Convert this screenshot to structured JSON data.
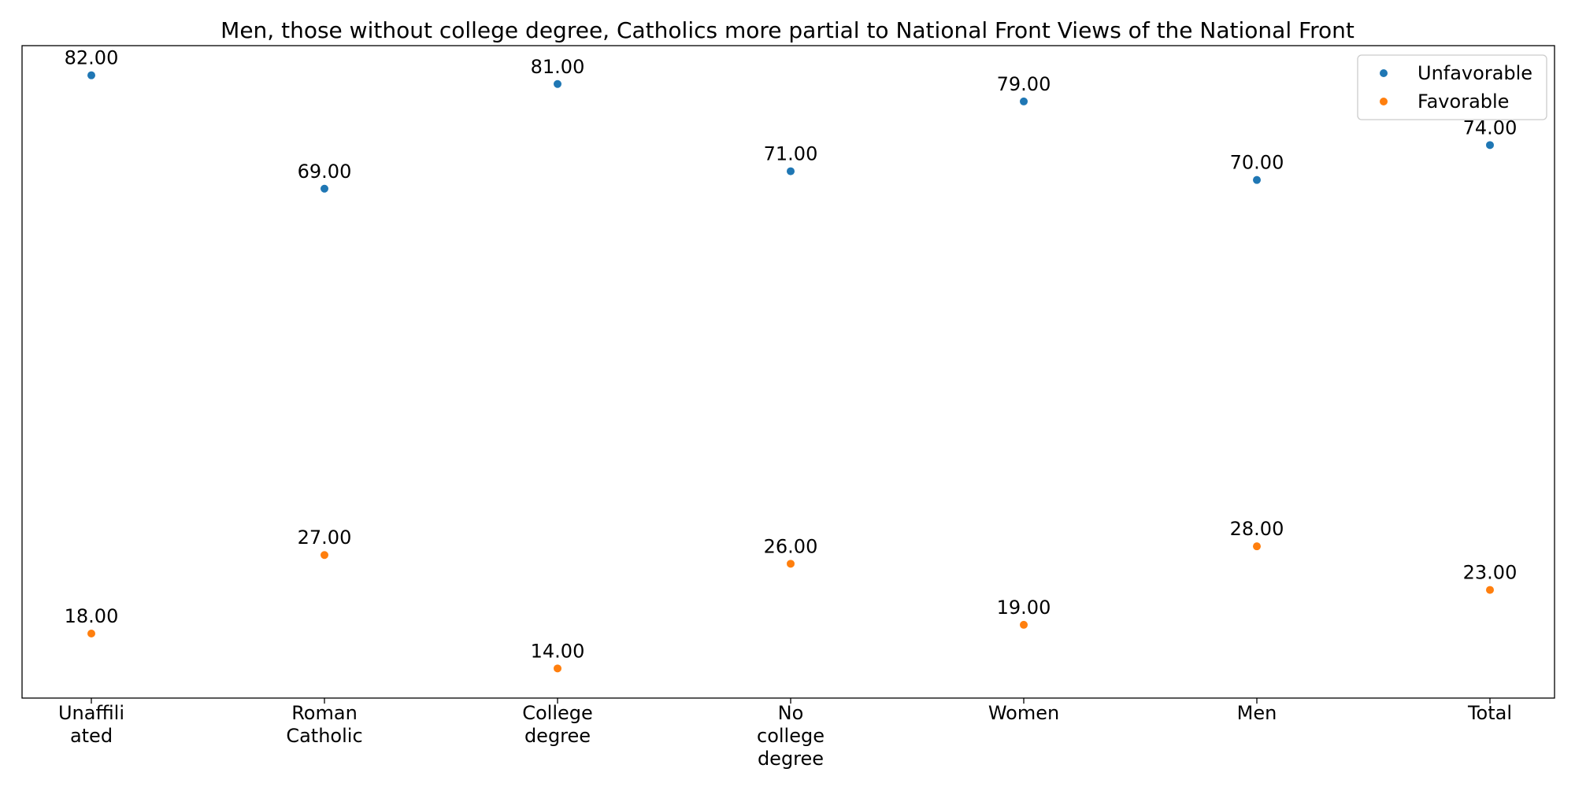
{
  "chart_data": {
    "type": "scatter",
    "title": "Men, those without college degree, Catholics more partial to National Front Views of the National Front",
    "xlabel": "",
    "ylabel": "",
    "categories": [
      [
        "Unaffili",
        "ated"
      ],
      [
        "Roman",
        "Catholic"
      ],
      [
        "College",
        "degree"
      ],
      [
        "No",
        "college",
        "degree"
      ],
      [
        "Women"
      ],
      [
        "Men"
      ],
      [
        "Total"
      ]
    ],
    "series": [
      {
        "name": "Unfavorable",
        "color": "#1f77b4",
        "values": [
          82,
          69,
          81,
          71,
          79,
          70,
          74
        ],
        "labels": [
          "82.00",
          "69.00",
          "81.00",
          "71.00",
          "79.00",
          "70.00",
          "74.00"
        ]
      },
      {
        "name": "Favorable",
        "color": "#ff7f0e",
        "values": [
          18,
          27,
          14,
          26,
          19,
          28,
          23
        ],
        "labels": [
          "18.00",
          "27.00",
          "14.00",
          "26.00",
          "19.00",
          "28.00",
          "23.00"
        ]
      }
    ],
    "ylim": [
      10.6,
      85.4
    ],
    "grid": false,
    "y_ticks_visible": false,
    "legend_position": "top-right"
  }
}
